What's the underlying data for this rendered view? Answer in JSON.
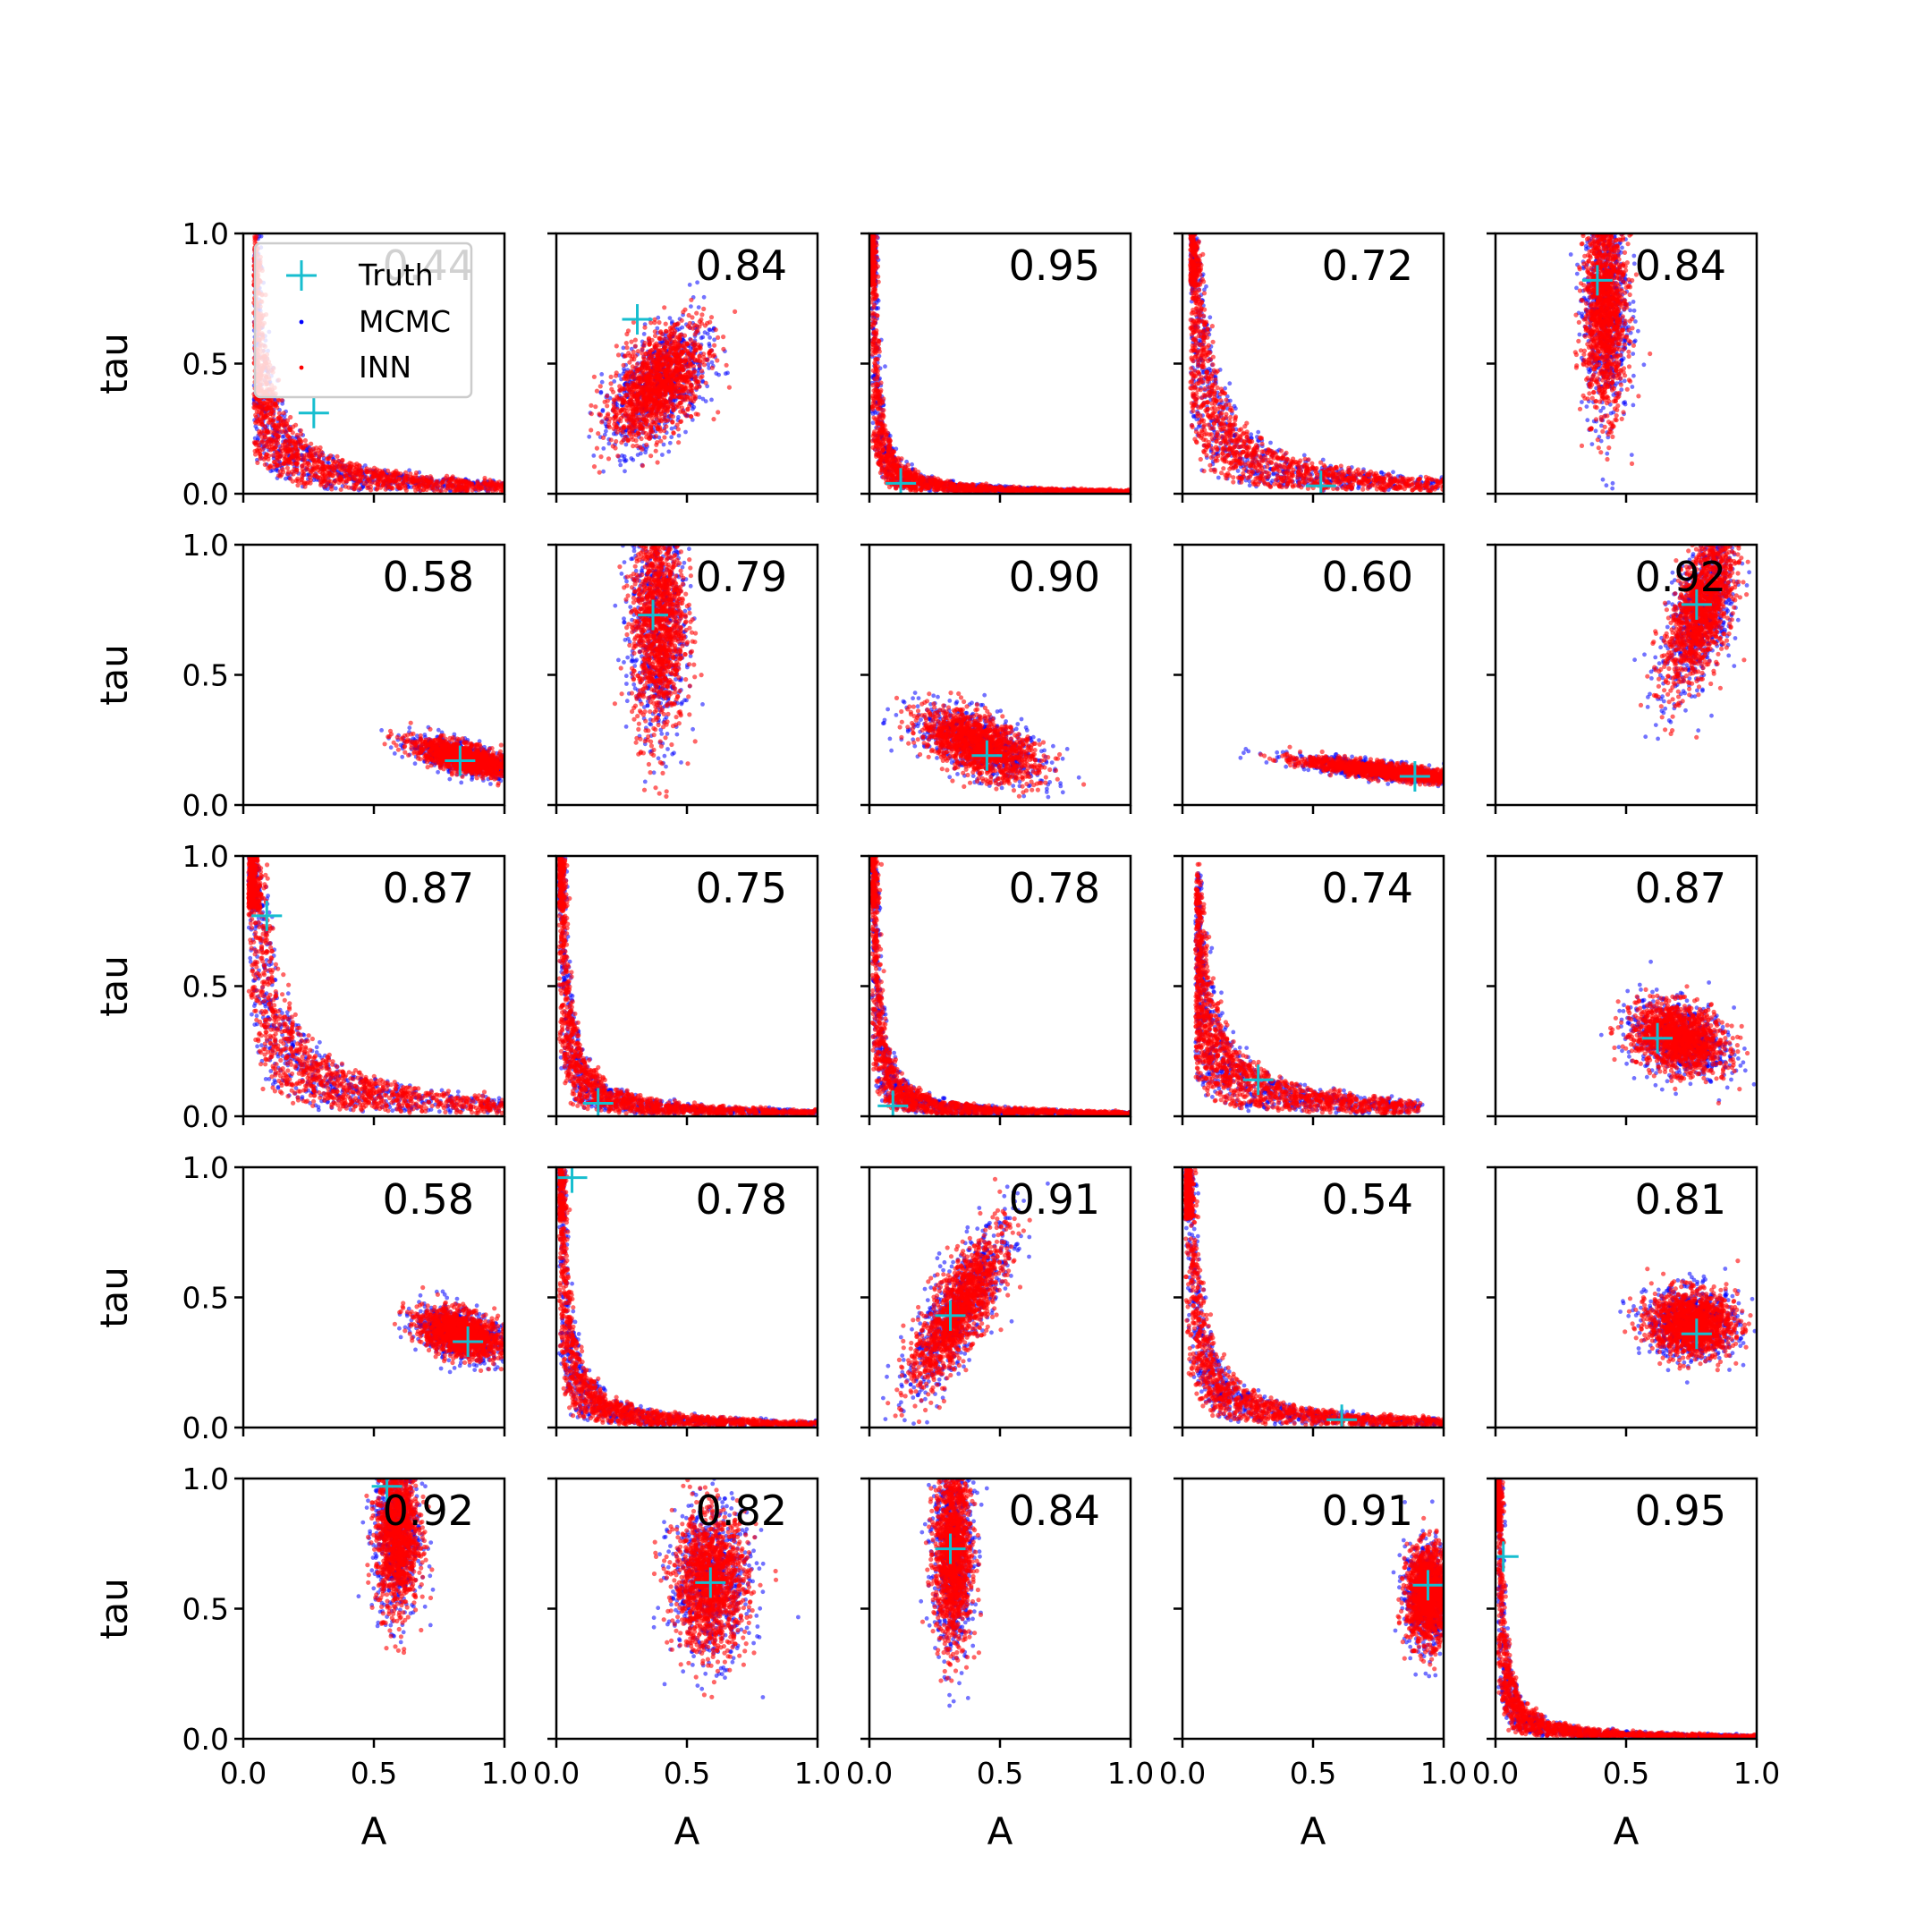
{
  "chart_data": {
    "type": "scatter",
    "layout": "5x5 grid of posterior scatter panels",
    "xlabel": "A",
    "ylabel": "tau",
    "xlim": [
      0.0,
      1.0
    ],
    "ylim": [
      0.0,
      1.0
    ],
    "x_ticks": [
      "0.0",
      "0.5",
      "1.0"
    ],
    "y_ticks": [
      "0.0",
      "0.5",
      "1.0"
    ],
    "legend": {
      "placement": "upper-left of first panel",
      "entries": [
        {
          "label": "Truth",
          "marker": "plus",
          "color": "#17becf"
        },
        {
          "label": "MCMC",
          "marker": "dot",
          "color": "#0000ff"
        },
        {
          "label": "INN",
          "marker": "dot",
          "color": "#ff0000"
        }
      ]
    },
    "colors": {
      "mcmc": "#0000ff",
      "inn": "#ff0000",
      "truth": "#17becf"
    },
    "panels": [
      {
        "score": "0.44",
        "truth": [
          0.27,
          0.31
        ],
        "shape": "curve",
        "curve_k": 0.04,
        "x_range": [
          0.04,
          1.0
        ],
        "y_max": 1.0
      },
      {
        "score": "0.84",
        "truth": [
          0.31,
          0.67
        ],
        "shape": "blob",
        "center": [
          0.39,
          0.42
        ],
        "spread": [
          0.07,
          0.12
        ],
        "tilt": -0.6
      },
      {
        "score": "0.95",
        "truth": [
          0.12,
          0.04
        ],
        "shape": "curve",
        "curve_k": 0.012,
        "x_range": [
          0.005,
          1.0
        ],
        "y_max": 1.0
      },
      {
        "score": "0.72",
        "truth": [
          0.53,
          0.03
        ],
        "shape": "curve",
        "curve_k": 0.05,
        "x_range": [
          0.03,
          1.0
        ],
        "y_max": 1.0
      },
      {
        "score": "0.84",
        "truth": [
          0.39,
          0.82
        ],
        "shape": "blob",
        "center": [
          0.42,
          0.72
        ],
        "spread": [
          0.04,
          0.2
        ],
        "tilt": 0.0
      },
      {
        "score": "0.58",
        "truth": [
          0.83,
          0.17
        ],
        "shape": "blob",
        "center": [
          0.85,
          0.18
        ],
        "spread": [
          0.1,
          0.025
        ],
        "tilt": -0.25
      },
      {
        "score": "0.79",
        "truth": [
          0.37,
          0.73
        ],
        "shape": "blob",
        "center": [
          0.39,
          0.72
        ],
        "spread": [
          0.05,
          0.22
        ],
        "tilt": 0.0
      },
      {
        "score": "0.90",
        "truth": [
          0.45,
          0.19
        ],
        "shape": "blob",
        "center": [
          0.42,
          0.23
        ],
        "spread": [
          0.12,
          0.05
        ],
        "tilt": -0.4
      },
      {
        "score": "0.60",
        "truth": [
          0.89,
          0.11
        ],
        "shape": "blob",
        "center": [
          0.78,
          0.13
        ],
        "spread": [
          0.16,
          0.015
        ],
        "tilt": -0.12
      },
      {
        "score": "0.92",
        "truth": [
          0.77,
          0.77
        ],
        "shape": "blob",
        "center": [
          0.79,
          0.76
        ],
        "spread": [
          0.05,
          0.16
        ],
        "tilt": -0.3
      },
      {
        "score": "0.87",
        "truth": [
          0.09,
          0.77
        ],
        "shape": "curve",
        "curve_k": 0.06,
        "x_range": [
          0.02,
          1.0
        ],
        "y_max": 1.0
      },
      {
        "score": "0.75",
        "truth": [
          0.16,
          0.05
        ],
        "shape": "curve",
        "curve_k": 0.02,
        "x_range": [
          0.01,
          1.0
        ],
        "y_max": 1.0
      },
      {
        "score": "0.78",
        "truth": [
          0.09,
          0.04
        ],
        "shape": "curve",
        "curve_k": 0.015,
        "x_range": [
          0.008,
          1.0
        ],
        "y_max": 1.0
      },
      {
        "score": "0.74",
        "truth": [
          0.29,
          0.14
        ],
        "shape": "curve",
        "curve_k": 0.045,
        "x_range": [
          0.05,
          0.9
        ],
        "y_max": 0.97
      },
      {
        "score": "0.87",
        "truth": [
          0.62,
          0.3
        ],
        "shape": "blob",
        "center": [
          0.7,
          0.3
        ],
        "spread": [
          0.09,
          0.06
        ],
        "tilt": -0.35
      },
      {
        "score": "0.58",
        "truth": [
          0.86,
          0.33
        ],
        "shape": "blob",
        "center": [
          0.83,
          0.36
        ],
        "spread": [
          0.08,
          0.04
        ],
        "tilt": -0.3
      },
      {
        "score": "0.78",
        "truth": [
          0.06,
          0.96
        ],
        "shape": "curve",
        "curve_k": 0.02,
        "x_range": [
          0.01,
          1.0
        ],
        "y_max": 1.0
      },
      {
        "score": "0.91",
        "truth": [
          0.31,
          0.43
        ],
        "shape": "blob",
        "center": [
          0.34,
          0.45
        ],
        "spread": [
          0.05,
          0.16
        ],
        "tilt": -0.5
      },
      {
        "score": "0.54",
        "truth": [
          0.61,
          0.03
        ],
        "shape": "curve",
        "curve_k": 0.03,
        "x_range": [
          0.01,
          1.0
        ],
        "y_max": 1.0
      },
      {
        "score": "0.81",
        "truth": [
          0.77,
          0.36
        ],
        "shape": "blob",
        "center": [
          0.75,
          0.4
        ],
        "spread": [
          0.08,
          0.06
        ],
        "tilt": -0.1
      },
      {
        "score": "0.92",
        "truth": [
          0.55,
          0.97
        ],
        "shape": "blob",
        "center": [
          0.59,
          0.8
        ],
        "spread": [
          0.04,
          0.15
        ],
        "tilt": 0.0
      },
      {
        "score": "0.82",
        "truth": [
          0.59,
          0.6
        ],
        "shape": "blob",
        "center": [
          0.59,
          0.6
        ],
        "spread": [
          0.07,
          0.13
        ],
        "tilt": 0.0
      },
      {
        "score": "0.84",
        "truth": [
          0.31,
          0.73
        ],
        "shape": "blob",
        "center": [
          0.32,
          0.72
        ],
        "spread": [
          0.035,
          0.18
        ],
        "tilt": 0.0
      },
      {
        "score": "0.91",
        "truth": [
          0.94,
          0.59
        ],
        "shape": "blob",
        "center": [
          0.94,
          0.55
        ],
        "spread": [
          0.04,
          0.09
        ],
        "tilt": 0.0
      },
      {
        "score": "0.95",
        "truth": [
          0.03,
          0.7
        ],
        "shape": "curve",
        "curve_k": 0.012,
        "x_range": [
          0.005,
          1.0
        ],
        "y_max": 1.0
      }
    ]
  }
}
